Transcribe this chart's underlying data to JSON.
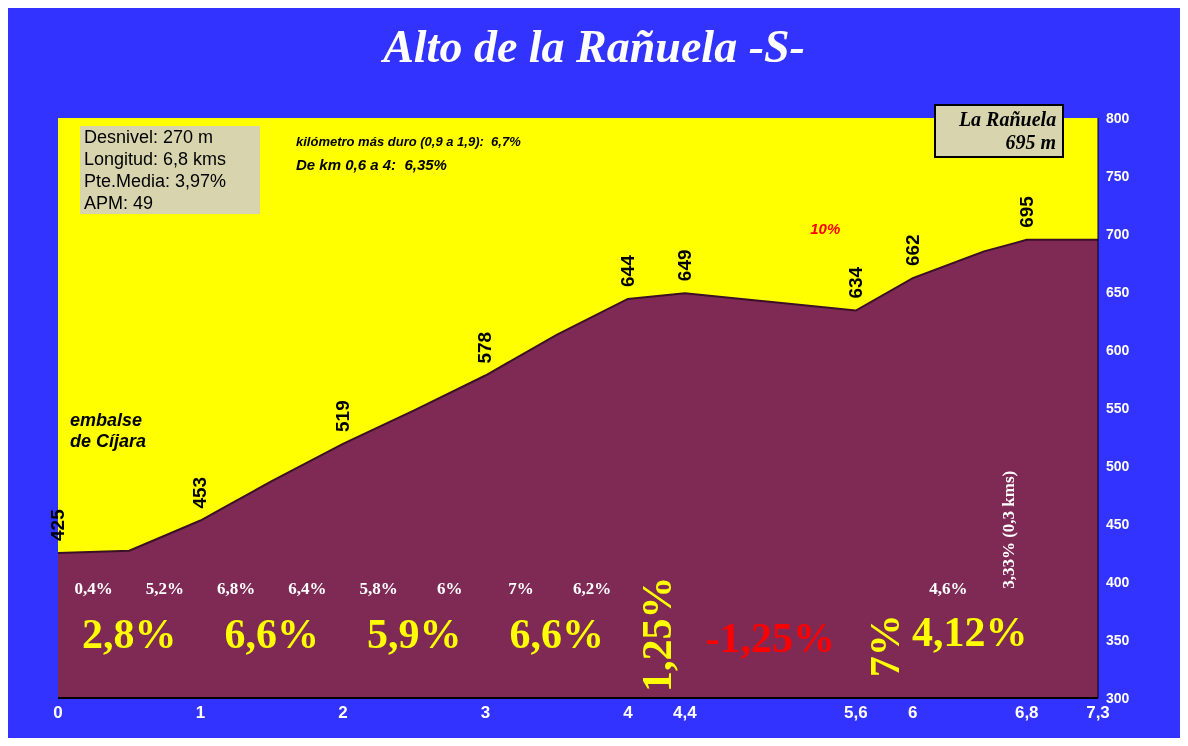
{
  "chart_data": {
    "type": "area",
    "title": "Alto de la Rañuela -S-",
    "x": [
      0,
      0.5,
      1,
      1.5,
      2,
      2.5,
      3,
      3.5,
      4,
      4.4,
      5.6,
      6,
      6.5,
      6.8,
      7.3
    ],
    "values": [
      425,
      427,
      453,
      487,
      519,
      548,
      578,
      613,
      644,
      649,
      634,
      662,
      685,
      695,
      695
    ],
    "value_labels": [
      "425",
      null,
      "453",
      null,
      "519",
      null,
      "578",
      null,
      "644",
      "649",
      "634",
      "662",
      null,
      "695",
      null
    ],
    "color": "#7f2a55",
    "xlim": [
      0,
      7.3
    ],
    "xticks": [
      0,
      1,
      2,
      3,
      4,
      {
        "value": 4.4,
        "label": "4,4"
      },
      {
        "value": 5.6,
        "label": "5,6"
      },
      6,
      {
        "value": 6.8,
        "label": "6,8"
      },
      {
        "value": 7.3,
        "label": "7,3"
      }
    ],
    "ylim": [
      300,
      800
    ],
    "yticks": [
      300,
      350,
      400,
      450,
      500,
      550,
      600,
      650,
      700,
      750,
      800
    ],
    "annotations": [
      "Desnivel: 270 m",
      "Longitud: 6,8 kms",
      "Pte.Media: 3,97%",
      "APM: 49",
      "kilómetro más duro (0,9 a 1,9):  6,7%",
      "De km 0,6 a 4:  6,35%",
      "embalse de Cíjara",
      "10%",
      "La Rañuela 695 m",
      "0,4%",
      "5,2%",
      "6,8%",
      "6,4%",
      "5,8%",
      "6%",
      "7%",
      "6,2%",
      "4,6%",
      "3,33% (0,3 kms)",
      "2,8%",
      "6,6%",
      "5,9%",
      "6,6%",
      "1,25%",
      "-1,25%",
      "7%",
      "4,12%"
    ]
  }
}
